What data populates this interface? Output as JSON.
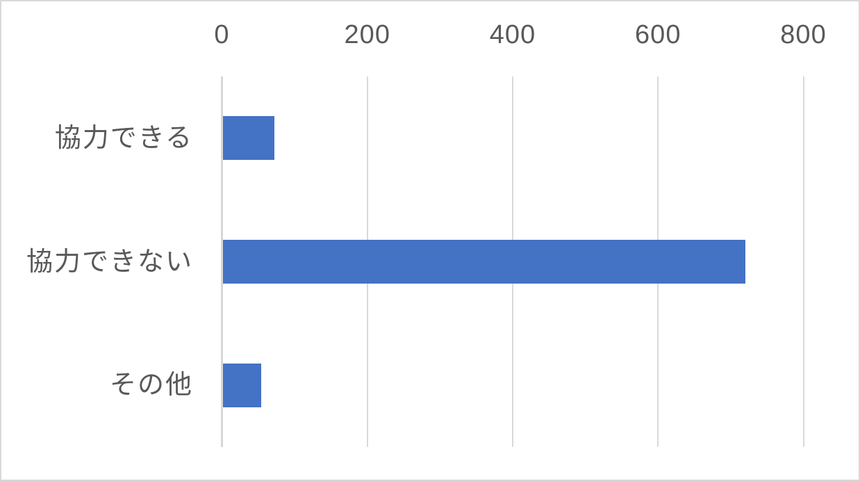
{
  "chart_data": {
    "type": "bar",
    "orientation": "horizontal",
    "title": "",
    "xlabel": "",
    "ylabel": "",
    "categories": [
      "協力できる",
      "協力できない",
      "その他"
    ],
    "values": [
      71,
      719,
      53
    ],
    "xlim": [
      0,
      800
    ],
    "xticks": [
      0,
      200,
      400,
      600,
      800
    ],
    "xtick_labels": [
      "0",
      "200",
      "400",
      "600",
      "800"
    ],
    "grid": true,
    "legend": false,
    "colors": {
      "bar": "#4472C4",
      "gridline": "#D9D9D9",
      "axis_line": "#D6D6D6",
      "text": "#595959",
      "frame_border": "#D9D9D9",
      "background": "#FFFFFF"
    }
  }
}
